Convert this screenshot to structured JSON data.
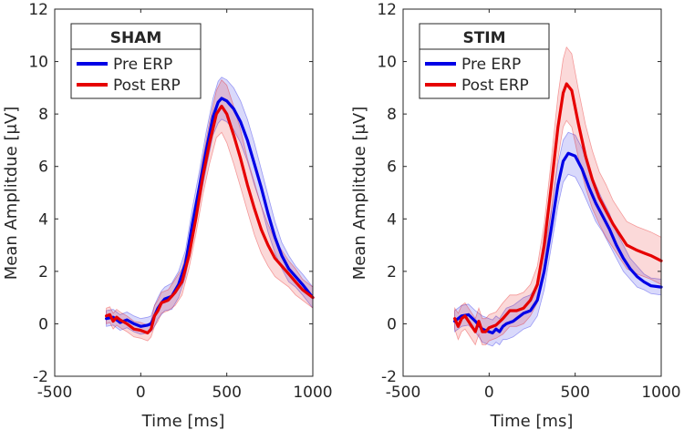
{
  "figure": {
    "ylabel": "Mean Amplitdue [μV]"
  },
  "chart_data": [
    {
      "type": "line",
      "title": "SHAM",
      "xlabel": "Time [ms]",
      "ylabel": "Mean Amplitdue [μV]",
      "xlim": [
        -500,
        1000
      ],
      "ylim": [
        -2,
        12
      ],
      "xticks": [
        -500,
        0,
        500,
        1000
      ],
      "yticks": [
        -2,
        0,
        2,
        4,
        6,
        8,
        10,
        12
      ],
      "xtick_labels": [
        "-500",
        "0",
        "500",
        "1000"
      ],
      "ytick_labels": [
        "-2",
        "0",
        "2",
        "4",
        "6",
        "8",
        "10",
        "12"
      ],
      "legend": "top-left",
      "series": [
        {
          "name": "Pre ERP",
          "color": "#0000e6",
          "points": [
            [
              -200,
              0.2
            ],
            [
              -160,
              0.25
            ],
            [
              -120,
              0.05
            ],
            [
              -80,
              0.15
            ],
            [
              -40,
              0.0
            ],
            [
              0,
              -0.1
            ],
            [
              40,
              -0.05
            ],
            [
              60,
              0.0
            ],
            [
              80,
              0.3
            ],
            [
              100,
              0.6
            ],
            [
              120,
              0.8
            ],
            [
              140,
              0.95
            ],
            [
              180,
              1.05
            ],
            [
              220,
              1.5
            ],
            [
              260,
              2.3
            ],
            [
              300,
              3.8
            ],
            [
              340,
              5.2
            ],
            [
              380,
              6.6
            ],
            [
              420,
              7.9
            ],
            [
              450,
              8.45
            ],
            [
              470,
              8.6
            ],
            [
              500,
              8.5
            ],
            [
              540,
              8.2
            ],
            [
              580,
              7.7
            ],
            [
              620,
              7.0
            ],
            [
              660,
              6.1
            ],
            [
              700,
              5.2
            ],
            [
              740,
              4.2
            ],
            [
              780,
              3.3
            ],
            [
              820,
              2.6
            ],
            [
              860,
              2.1
            ],
            [
              900,
              1.8
            ],
            [
              940,
              1.5
            ],
            [
              1000,
              1.0
            ]
          ],
          "band": [
            0.3,
            0.3,
            0.3,
            0.3,
            0.3,
            0.3,
            0.3,
            0.3,
            0.4,
            0.4,
            0.45,
            0.45,
            0.5,
            0.5,
            0.5,
            0.6,
            0.6,
            0.7,
            0.7,
            0.8,
            0.8,
            0.8,
            0.8,
            0.8,
            0.8,
            0.8,
            0.7,
            0.7,
            0.6,
            0.5,
            0.5,
            0.4,
            0.4,
            0.4
          ]
        },
        {
          "name": "Post ERP",
          "color": "#e60000",
          "points": [
            [
              -200,
              0.3
            ],
            [
              -180,
              0.35
            ],
            [
              -160,
              0.1
            ],
            [
              -140,
              0.25
            ],
            [
              -120,
              0.15
            ],
            [
              -80,
              0.0
            ],
            [
              -40,
              -0.2
            ],
            [
              0,
              -0.25
            ],
            [
              40,
              -0.35
            ],
            [
              60,
              -0.2
            ],
            [
              80,
              0.3
            ],
            [
              100,
              0.5
            ],
            [
              120,
              0.8
            ],
            [
              160,
              0.9
            ],
            [
              200,
              1.2
            ],
            [
              240,
              1.6
            ],
            [
              280,
              2.6
            ],
            [
              320,
              4.0
            ],
            [
              360,
              5.6
            ],
            [
              400,
              6.9
            ],
            [
              440,
              8.0
            ],
            [
              470,
              8.3
            ],
            [
              500,
              8.0
            ],
            [
              540,
              7.2
            ],
            [
              580,
              6.3
            ],
            [
              620,
              5.3
            ],
            [
              660,
              4.4
            ],
            [
              700,
              3.6
            ],
            [
              740,
              3.0
            ],
            [
              780,
              2.5
            ],
            [
              820,
              2.2
            ],
            [
              860,
              1.9
            ],
            [
              900,
              1.6
            ],
            [
              940,
              1.3
            ],
            [
              1000,
              1.0
            ]
          ],
          "band": [
            0.3,
            0.3,
            0.3,
            0.3,
            0.3,
            0.3,
            0.3,
            0.3,
            0.3,
            0.3,
            0.4,
            0.4,
            0.4,
            0.4,
            0.5,
            0.5,
            0.5,
            0.6,
            0.7,
            0.8,
            0.9,
            1.0,
            1.1,
            1.1,
            1.1,
            1.0,
            1.0,
            0.9,
            0.8,
            0.7,
            0.6,
            0.5,
            0.5,
            0.4,
            0.4
          ]
        }
      ]
    },
    {
      "type": "line",
      "title": "STIM",
      "xlabel": "Time [ms]",
      "ylabel": "Mean Amplitdue [μV]",
      "xlim": [
        -500,
        1000
      ],
      "ylim": [
        -2,
        12
      ],
      "xticks": [
        -500,
        0,
        500,
        1000
      ],
      "yticks": [
        -2,
        0,
        2,
        4,
        6,
        8,
        10,
        12
      ],
      "xtick_labels": [
        "-500",
        "0",
        "500",
        "1000"
      ],
      "ytick_labels": [
        "-2",
        "0",
        "2",
        "4",
        "6",
        "8",
        "10",
        "12"
      ],
      "legend": "top-left",
      "series": [
        {
          "name": "Pre ERP",
          "color": "#0000e6",
          "points": [
            [
              -200,
              0.1
            ],
            [
              -160,
              0.3
            ],
            [
              -120,
              0.35
            ],
            [
              -80,
              0.1
            ],
            [
              -40,
              -0.2
            ],
            [
              0,
              -0.3
            ],
            [
              20,
              -0.35
            ],
            [
              40,
              -0.2
            ],
            [
              60,
              -0.3
            ],
            [
              80,
              -0.1
            ],
            [
              100,
              0.0
            ],
            [
              120,
              0.05
            ],
            [
              140,
              0.1
            ],
            [
              160,
              0.2
            ],
            [
              200,
              0.4
            ],
            [
              240,
              0.5
            ],
            [
              280,
              0.9
            ],
            [
              320,
              2.0
            ],
            [
              360,
              3.6
            ],
            [
              400,
              5.3
            ],
            [
              430,
              6.2
            ],
            [
              460,
              6.5
            ],
            [
              500,
              6.4
            ],
            [
              540,
              5.9
            ],
            [
              580,
              5.2
            ],
            [
              620,
              4.6
            ],
            [
              660,
              4.1
            ],
            [
              700,
              3.6
            ],
            [
              740,
              3.0
            ],
            [
              780,
              2.5
            ],
            [
              820,
              2.1
            ],
            [
              860,
              1.8
            ],
            [
              900,
              1.6
            ],
            [
              940,
              1.45
            ],
            [
              1000,
              1.4
            ]
          ],
          "band": [
            0.4,
            0.4,
            0.4,
            0.4,
            0.5,
            0.5,
            0.5,
            0.5,
            0.5,
            0.5,
            0.6,
            0.6,
            0.6,
            0.6,
            0.6,
            0.6,
            0.6,
            0.7,
            0.7,
            0.8,
            0.8,
            0.8,
            0.8,
            0.8,
            0.7,
            0.7,
            0.6,
            0.6,
            0.5,
            0.5,
            0.4,
            0.4,
            0.3,
            0.3,
            0.3
          ]
        },
        {
          "name": "Post ERP",
          "color": "#e60000",
          "points": [
            [
              -200,
              0.2
            ],
            [
              -180,
              -0.1
            ],
            [
              -160,
              0.2
            ],
            [
              -140,
              0.3
            ],
            [
              -120,
              0.1
            ],
            [
              -80,
              -0.3
            ],
            [
              -60,
              0.1
            ],
            [
              -40,
              -0.3
            ],
            [
              -20,
              -0.3
            ],
            [
              0,
              -0.15
            ],
            [
              40,
              -0.05
            ],
            [
              80,
              0.2
            ],
            [
              120,
              0.5
            ],
            [
              160,
              0.5
            ],
            [
              200,
              0.6
            ],
            [
              240,
              0.9
            ],
            [
              280,
              1.5
            ],
            [
              320,
              3.0
            ],
            [
              360,
              5.2
            ],
            [
              400,
              7.5
            ],
            [
              430,
              8.8
            ],
            [
              450,
              9.15
            ],
            [
              480,
              8.9
            ],
            [
              520,
              7.6
            ],
            [
              560,
              6.4
            ],
            [
              600,
              5.5
            ],
            [
              640,
              4.8
            ],
            [
              680,
              4.3
            ],
            [
              720,
              3.8
            ],
            [
              760,
              3.4
            ],
            [
              800,
              3.0
            ],
            [
              860,
              2.8
            ],
            [
              900,
              2.7
            ],
            [
              940,
              2.6
            ],
            [
              1000,
              2.4
            ]
          ],
          "band": [
            0.4,
            0.5,
            0.5,
            0.5,
            0.5,
            0.5,
            0.5,
            0.5,
            0.5,
            0.5,
            0.5,
            0.6,
            0.6,
            0.6,
            0.6,
            0.6,
            0.7,
            0.8,
            1.0,
            1.2,
            1.3,
            1.4,
            1.4,
            1.3,
            1.2,
            1.1,
            1.0,
            1.0,
            0.9,
            0.9,
            0.9,
            0.9,
            0.9,
            0.9,
            0.9
          ]
        }
      ]
    }
  ]
}
